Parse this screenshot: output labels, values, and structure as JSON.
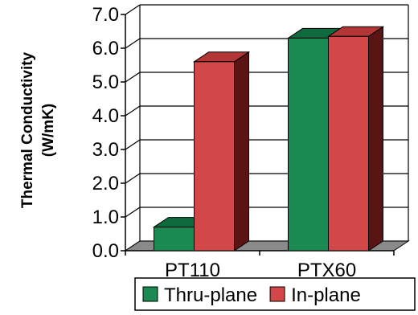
{
  "chart_data": {
    "type": "bar",
    "title": "",
    "ylabel": [
      "Thermal Conductivity",
      "(W/mK)"
    ],
    "xlabel": "",
    "categories": [
      "PT110",
      "PTX60"
    ],
    "ylim": [
      0,
      7
    ],
    "yticks": [
      "0.0",
      "1.0",
      "2.0",
      "3.0",
      "4.0",
      "5.0",
      "6.0",
      "7.0"
    ],
    "grid": true,
    "legend_position": "bottom",
    "series": [
      {
        "name": "Thru-plane",
        "values": [
          0.7,
          6.3
        ],
        "color": "#1a8a52",
        "top_color": "#0f6b3e",
        "side_color": "#0a4a2a"
      },
      {
        "name": "In-plane",
        "values": [
          5.6,
          6.35
        ],
        "color": "#d24848",
        "top_color": "#b23636",
        "side_color": "#5a1414"
      }
    ],
    "floor_color": "#8a8a8a"
  }
}
